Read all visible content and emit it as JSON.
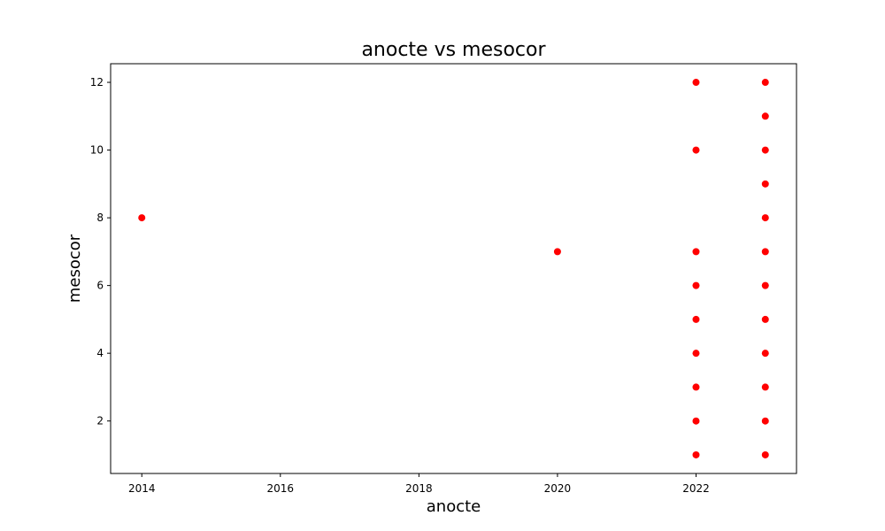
{
  "chart_data": {
    "type": "scatter",
    "title": "anocte vs mesocor",
    "xlabel": "anocte",
    "ylabel": "mesocor",
    "xlim": [
      2013.55,
      2023.45
    ],
    "ylim": [
      0.45,
      12.55
    ],
    "xticks": [
      2014,
      2016,
      2018,
      2020,
      2022
    ],
    "yticks": [
      2,
      4,
      6,
      8,
      10,
      12
    ],
    "grid": false,
    "marker_color": "#ff0000",
    "points": [
      {
        "x": 2014,
        "y": 8
      },
      {
        "x": 2020,
        "y": 7
      },
      {
        "x": 2022,
        "y": 12
      },
      {
        "x": 2022,
        "y": 10
      },
      {
        "x": 2022,
        "y": 7
      },
      {
        "x": 2022,
        "y": 6
      },
      {
        "x": 2022,
        "y": 5
      },
      {
        "x": 2022,
        "y": 4
      },
      {
        "x": 2022,
        "y": 3
      },
      {
        "x": 2022,
        "y": 2
      },
      {
        "x": 2022,
        "y": 1
      },
      {
        "x": 2023,
        "y": 12
      },
      {
        "x": 2023,
        "y": 11
      },
      {
        "x": 2023,
        "y": 10
      },
      {
        "x": 2023,
        "y": 9
      },
      {
        "x": 2023,
        "y": 8
      },
      {
        "x": 2023,
        "y": 7
      },
      {
        "x": 2023,
        "y": 6
      },
      {
        "x": 2023,
        "y": 5
      },
      {
        "x": 2023,
        "y": 4
      },
      {
        "x": 2023,
        "y": 3
      },
      {
        "x": 2023,
        "y": 2
      },
      {
        "x": 2023,
        "y": 1
      }
    ]
  }
}
